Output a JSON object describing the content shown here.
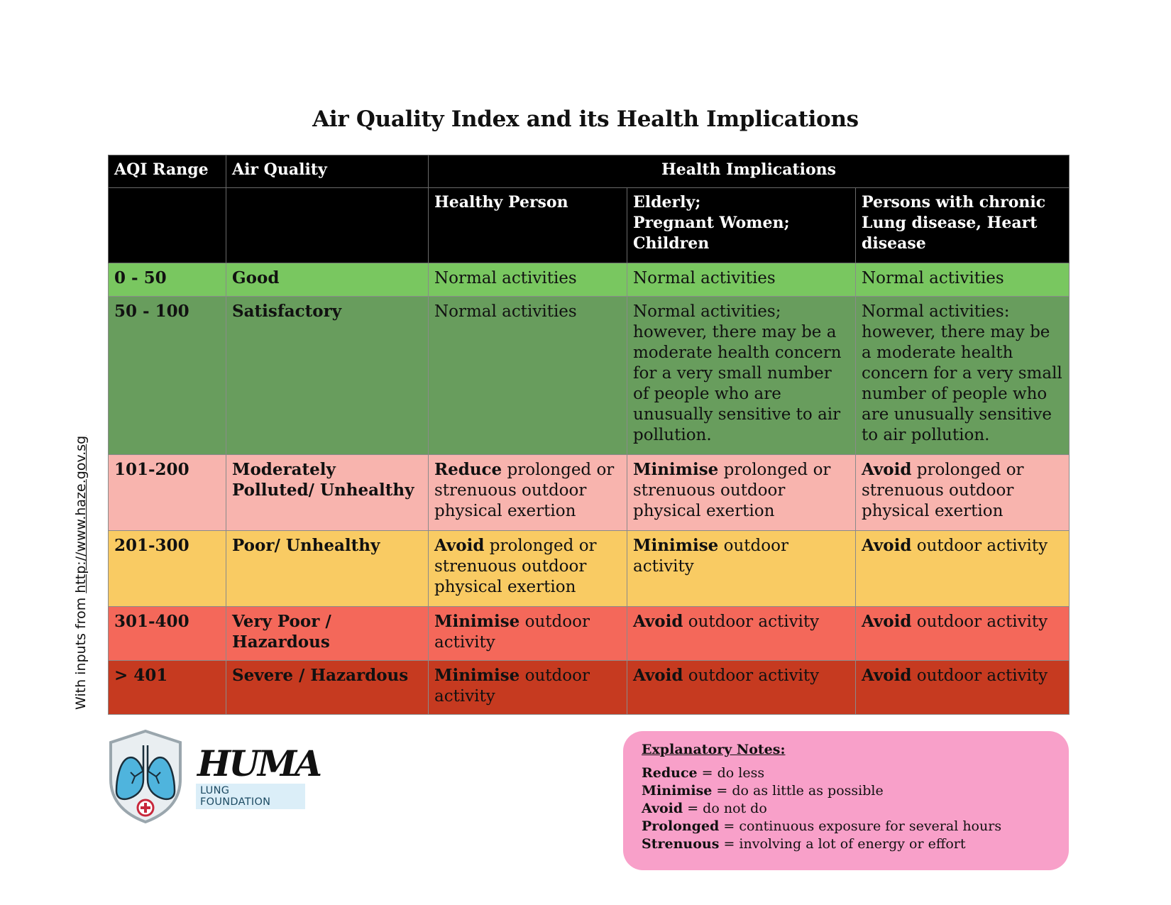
{
  "title": "Air Quality Index and its Health Implications",
  "side_note": {
    "prefix": "With inputs from ",
    "link": "http://www.haze.gov.sg"
  },
  "table": {
    "headers": {
      "range": "AQI Range",
      "quality": "Air Quality",
      "implications": "Health Implications",
      "healthy": "Healthy Person",
      "elderly": "Elderly;\nPregnant Women;\nChildren",
      "chronic": "Persons with chronic Lung disease, Heart disease"
    },
    "rows": [
      {
        "range": "0 - 50",
        "quality": "Good",
        "color": "#79c760",
        "healthy": {
          "bold": "",
          "text": "Normal activities"
        },
        "elderly": {
          "bold": "",
          "text": "Normal activities"
        },
        "chronic": {
          "bold": "",
          "text": "Normal activities"
        }
      },
      {
        "range": "50 - 100",
        "quality": "Satisfactory",
        "color": "#689d5d",
        "healthy": {
          "bold": "",
          "text": "Normal activities"
        },
        "elderly": {
          "bold": "",
          "text": "Normal activities; however, there may be a moderate health concern for a very small number of people who are unusually sensitive to air pollution."
        },
        "chronic": {
          "bold": "",
          "text": "Normal activities: however, there may be a moderate health concern for a very small number of people who are unusually sensitive to air pollution."
        }
      },
      {
        "range": "101-200",
        "quality": "Moderately Polluted/ Unhealthy",
        "color": "#f8b4ae",
        "healthy": {
          "bold": "Reduce",
          "text": " prolonged or strenuous outdoor physical exertion"
        },
        "elderly": {
          "bold": "Minimise",
          "text": " prolonged or strenuous outdoor physical exertion"
        },
        "chronic": {
          "bold": "Avoid",
          "text": " prolonged or strenuous outdoor physical exertion"
        }
      },
      {
        "range": "201-300",
        "quality": "Poor/ Unhealthy",
        "color": "#f9cb63",
        "healthy": {
          "bold": "Avoid",
          "text": " prolonged or strenuous outdoor physical exertion"
        },
        "elderly": {
          "bold": "Minimise",
          "text": " outdoor activity"
        },
        "chronic": {
          "bold": "Avoid",
          "text": " outdoor activity"
        }
      },
      {
        "range": "301-400",
        "quality": "Very Poor / Hazardous",
        "color": "#f4685a",
        "healthy": {
          "bold": "Minimise",
          "text": " outdoor activity"
        },
        "elderly": {
          "bold": "Avoid",
          "text": " outdoor activity"
        },
        "chronic": {
          "bold": "Avoid",
          "text": " outdoor activity"
        }
      },
      {
        "range": "> 401",
        "quality": "Severe / Hazardous",
        "color": "#c63a20",
        "healthy": {
          "bold": "Minimise",
          "text": " outdoor activity"
        },
        "elderly": {
          "bold": "Avoid",
          "text": " outdoor activity"
        },
        "chronic": {
          "bold": "Avoid",
          "text": " outdoor activity"
        }
      }
    ]
  },
  "logo": {
    "word": "HUMA",
    "tagline": "LUNG FOUNDATION",
    "icon": "lungs-shield-icon"
  },
  "notes": {
    "heading": "Explanatory Notes:",
    "items": [
      {
        "term": "Reduce",
        "def": " = do less"
      },
      {
        "term": "Minimise",
        "def": " = do as little as possible"
      },
      {
        "term": "Avoid",
        "def": " = do not do"
      },
      {
        "term": "Prolonged",
        "def": " = continuous exposure for several hours"
      },
      {
        "term": "Strenuous",
        "def": " = involving a lot of energy or effort"
      }
    ]
  }
}
